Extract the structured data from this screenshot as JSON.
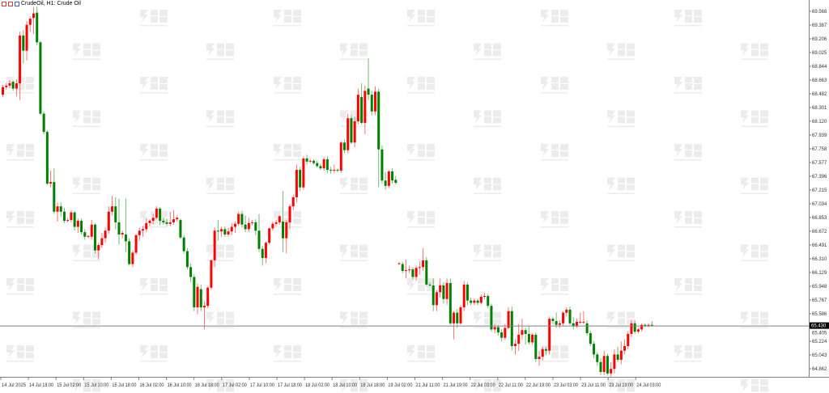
{
  "window": {
    "title": "CrudeOil, H1:  Crude Oil",
    "icons": [
      "chart-window-icon",
      "chart-window-icon",
      "chart-window-icon"
    ]
  },
  "watermark": "智昇",
  "colors": {
    "up": "#ff0000",
    "down": "#008000",
    "price_line": "#808080",
    "price_label_bg": "#000000",
    "grid_axis": "#808080"
  },
  "chart_data": {
    "type": "candlestick",
    "symbol": "CrudeOil",
    "timeframe": "H1",
    "current_price": "65.430",
    "ylim": [
      64.75,
      69.72
    ],
    "grid": false,
    "y_ticks": [
      "69.568",
      "69.387",
      "69.206",
      "69.025",
      "68.844",
      "68.663",
      "68.482",
      "68.301",
      "68.120",
      "67.939",
      "67.758",
      "67.577",
      "67.396",
      "67.215",
      "67.034",
      "66.853",
      "66.672",
      "66.491",
      "66.310",
      "66.129",
      "65.948",
      "65.767",
      "65.586",
      "65.405",
      "65.224",
      "65.043",
      "64.862"
    ],
    "x_ticks": [
      "14 Jul 2025",
      "14 Jul 18:00",
      "15 Jul 02:00",
      "15 Jul 10:00",
      "15 Jul 18:00",
      "16 Jul 02:00",
      "16 Jul 10:00",
      "16 Jul 18:00",
      "17 Jul 02:00",
      "17 Jul 10:00",
      "17 Jul 18:00",
      "18 Jul 02:00",
      "18 Jul 10:00",
      "18 Jul 18:00",
      "19 Jul 02:00",
      "21 Jul 11:00",
      "21 Jul 19:00",
      "22 Jul 03:00",
      "22 Jul 11:00",
      "22 Jul 19:00",
      "23 Jul 03:00",
      "23 Jul 11:00",
      "23 Jul 19:00",
      "24 Jul 03:00"
    ],
    "candles_ohlc": [
      [
        68.47,
        68.6,
        68.44,
        68.57
      ],
      [
        68.57,
        68.62,
        68.54,
        68.59
      ],
      [
        68.59,
        68.66,
        68.56,
        68.62
      ],
      [
        68.64,
        68.66,
        68.52,
        68.55
      ],
      [
        68.55,
        68.67,
        68.45,
        68.62
      ],
      [
        68.62,
        69.3,
        68.4,
        69.25
      ],
      [
        69.25,
        69.32,
        68.88,
        69.05
      ],
      [
        69.05,
        69.44,
        68.92,
        69.39
      ],
      [
        69.39,
        69.5,
        69.3,
        69.47
      ],
      [
        69.48,
        69.62,
        69.27,
        69.54
      ],
      [
        69.55,
        69.7,
        69.12,
        69.16
      ],
      [
        69.16,
        69.18,
        68.2,
        68.22
      ],
      [
        68.22,
        68.25,
        67.95,
        67.98
      ],
      [
        67.98,
        68.0,
        67.28,
        67.3
      ],
      [
        67.3,
        67.47,
        67.25,
        67.32
      ],
      [
        67.32,
        67.5,
        66.9,
        66.93
      ],
      [
        66.93,
        67.05,
        66.8,
        67.0
      ],
      [
        67.0,
        67.05,
        66.86,
        66.93
      ],
      [
        66.93,
        66.98,
        66.78,
        66.81
      ],
      [
        66.81,
        66.85,
        66.79,
        66.82
      ],
      [
        66.82,
        66.95,
        66.79,
        66.92
      ],
      [
        66.92,
        66.94,
        66.68,
        66.73
      ],
      [
        66.73,
        66.84,
        66.65,
        66.81
      ],
      [
        66.81,
        66.84,
        66.63,
        66.66
      ],
      [
        66.66,
        66.7,
        66.56,
        66.6
      ],
      [
        66.6,
        66.62,
        66.58,
        66.61
      ],
      [
        66.6,
        66.82,
        66.56,
        66.76
      ],
      [
        66.76,
        66.78,
        66.38,
        66.42
      ],
      [
        66.42,
        66.52,
        66.3,
        66.49
      ],
      [
        66.49,
        66.65,
        66.45,
        66.58
      ],
      [
        66.58,
        66.72,
        66.52,
        66.68
      ],
      [
        66.68,
        67.0,
        66.64,
        66.93
      ],
      [
        66.93,
        67.14,
        66.88,
        67.0
      ],
      [
        67.0,
        67.12,
        66.7,
        66.79
      ],
      [
        66.79,
        67.1,
        66.5,
        66.63
      ],
      [
        66.63,
        66.68,
        66.58,
        66.65
      ],
      [
        66.63,
        67.1,
        66.4,
        66.54
      ],
      [
        66.54,
        66.58,
        66.22,
        66.24
      ],
      [
        66.24,
        66.42,
        66.2,
        66.39
      ],
      [
        66.39,
        66.64,
        66.36,
        66.62
      ],
      [
        66.62,
        66.72,
        66.55,
        66.68
      ],
      [
        66.68,
        66.74,
        66.6,
        66.7
      ],
      [
        66.7,
        66.84,
        66.66,
        66.78
      ],
      [
        66.78,
        66.83,
        66.74,
        66.81
      ],
      [
        66.81,
        66.9,
        66.76,
        66.85
      ],
      [
        66.85,
        67.0,
        66.83,
        66.97
      ],
      [
        66.97,
        66.99,
        66.75,
        66.81
      ],
      [
        66.81,
        66.85,
        66.76,
        66.79
      ],
      [
        66.79,
        66.83,
        66.74,
        66.77
      ],
      [
        66.77,
        66.93,
        66.74,
        66.79
      ],
      [
        66.79,
        66.95,
        66.76,
        66.83
      ],
      [
        66.83,
        66.88,
        66.8,
        66.85
      ],
      [
        66.82,
        66.84,
        66.57,
        66.59
      ],
      [
        66.59,
        66.62,
        66.38,
        66.41
      ],
      [
        66.41,
        66.45,
        66.17,
        66.2
      ],
      [
        66.2,
        66.25,
        66.0,
        66.07
      ],
      [
        66.07,
        66.1,
        65.62,
        65.67
      ],
      [
        65.67,
        65.98,
        65.58,
        65.94
      ],
      [
        65.91,
        65.97,
        65.62,
        65.67
      ],
      [
        65.67,
        65.75,
        65.38,
        65.69
      ],
      [
        65.69,
        65.95,
        65.66,
        65.93
      ],
      [
        65.93,
        66.3,
        65.9,
        66.29
      ],
      [
        66.29,
        66.72,
        66.2,
        66.68
      ],
      [
        66.68,
        66.82,
        66.55,
        66.67
      ],
      [
        66.67,
        66.73,
        66.6,
        66.7
      ],
      [
        66.7,
        66.74,
        66.6,
        66.63
      ],
      [
        66.63,
        66.72,
        66.6,
        66.67
      ],
      [
        66.67,
        66.78,
        66.62,
        66.73
      ],
      [
        66.73,
        66.8,
        66.65,
        66.77
      ],
      [
        66.77,
        66.93,
        66.74,
        66.9
      ],
      [
        66.9,
        66.94,
        66.72,
        66.76
      ],
      [
        66.76,
        66.88,
        66.66,
        66.7
      ],
      [
        66.7,
        66.85,
        66.66,
        66.78
      ],
      [
        66.78,
        66.82,
        66.75,
        66.79
      ],
      [
        66.79,
        66.83,
        66.62,
        66.68
      ],
      [
        66.68,
        66.9,
        66.4,
        66.44
      ],
      [
        66.44,
        66.48,
        66.22,
        66.32
      ],
      [
        66.32,
        66.54,
        66.25,
        66.52
      ],
      [
        66.52,
        66.72,
        66.5,
        66.71
      ],
      [
        66.71,
        66.8,
        66.68,
        66.77
      ],
      [
        66.77,
        66.82,
        66.74,
        66.79
      ],
      [
        66.79,
        66.88,
        66.76,
        66.87
      ],
      [
        66.8,
        67.2,
        66.4,
        66.58
      ],
      [
        66.58,
        66.82,
        66.38,
        66.79
      ],
      [
        66.79,
        67.03,
        66.7,
        67.0
      ],
      [
        67.0,
        67.15,
        66.95,
        67.12
      ],
      [
        67.12,
        67.55,
        67.05,
        67.48
      ],
      [
        67.48,
        67.52,
        67.2,
        67.25
      ],
      [
        67.25,
        67.66,
        67.22,
        67.63
      ],
      [
        67.63,
        67.68,
        67.55,
        67.59
      ],
      [
        67.59,
        67.62,
        67.57,
        67.6
      ],
      [
        67.6,
        67.62,
        67.55,
        67.57
      ],
      [
        67.57,
        67.6,
        67.51,
        67.53
      ],
      [
        67.53,
        67.56,
        67.48,
        67.5
      ],
      [
        67.5,
        67.65,
        67.47,
        67.62
      ],
      [
        67.62,
        67.66,
        67.44,
        67.48
      ],
      [
        67.48,
        67.52,
        67.43,
        67.47
      ],
      [
        67.47,
        67.55,
        67.44,
        67.48
      ],
      [
        67.48,
        67.5,
        67.45,
        67.47
      ],
      [
        67.47,
        67.86,
        67.44,
        67.84
      ],
      [
        67.84,
        67.88,
        67.7,
        67.74
      ],
      [
        67.74,
        68.22,
        67.7,
        68.16
      ],
      [
        68.16,
        68.2,
        67.82,
        67.84
      ],
      [
        67.84,
        68.18,
        67.78,
        68.12
      ],
      [
        68.12,
        68.55,
        68.08,
        68.47
      ],
      [
        68.44,
        68.62,
        68.08,
        68.1
      ],
      [
        68.1,
        68.59,
        67.95,
        68.52
      ],
      [
        68.55,
        68.95,
        68.4,
        68.47
      ],
      [
        68.47,
        68.52,
        68.2,
        68.25
      ],
      [
        68.25,
        68.58,
        68.2,
        68.51
      ],
      [
        68.51,
        68.55,
        67.25,
        67.75
      ],
      [
        67.75,
        67.8,
        67.3,
        67.34
      ],
      [
        67.34,
        67.45,
        67.22,
        67.27
      ],
      [
        67.27,
        67.48,
        67.24,
        67.46
      ],
      [
        67.46,
        67.5,
        67.3,
        67.34
      ],
      [
        67.35,
        67.4,
        67.29,
        67.31
      ],
      [
        66.25,
        66.27,
        66.23,
        66.25
      ],
      [
        66.24,
        66.27,
        66.12,
        66.15
      ],
      [
        66.15,
        66.3,
        66.05,
        66.16
      ],
      [
        66.16,
        66.22,
        66.12,
        66.17
      ],
      [
        66.17,
        66.2,
        66.04,
        66.07
      ],
      [
        66.07,
        66.22,
        66.02,
        66.19
      ],
      [
        66.19,
        66.28,
        66.1,
        66.2
      ],
      [
        66.2,
        66.45,
        66.15,
        66.29
      ],
      [
        66.29,
        66.33,
        65.95,
        65.97
      ],
      [
        65.97,
        66.0,
        65.94,
        65.96
      ],
      [
        65.96,
        66.05,
        65.62,
        65.7
      ],
      [
        65.7,
        65.9,
        65.62,
        65.87
      ],
      [
        65.87,
        66.05,
        65.8,
        65.96
      ],
      [
        65.96,
        66.0,
        65.72,
        65.78
      ],
      [
        65.78,
        66.05,
        65.7,
        65.99
      ],
      [
        65.99,
        66.05,
        65.44,
        65.46
      ],
      [
        65.46,
        65.62,
        65.25,
        65.6
      ],
      [
        65.6,
        65.65,
        65.4,
        65.46
      ],
      [
        65.46,
        65.7,
        65.44,
        65.67
      ],
      [
        65.67,
        66.02,
        65.62,
        65.97
      ],
      [
        65.97,
        66.0,
        65.7,
        65.76
      ],
      [
        65.76,
        65.8,
        65.7,
        65.73
      ],
      [
        65.73,
        65.79,
        65.7,
        65.76
      ],
      [
        65.76,
        65.78,
        65.7,
        65.73
      ],
      [
        65.73,
        65.84,
        65.71,
        65.81
      ],
      [
        65.81,
        65.86,
        65.78,
        65.82
      ],
      [
        65.82,
        65.85,
        65.66,
        65.69
      ],
      [
        65.69,
        65.72,
        65.35,
        65.38
      ],
      [
        65.38,
        65.45,
        65.33,
        65.41
      ],
      [
        65.41,
        65.44,
        65.3,
        65.34
      ],
      [
        65.34,
        65.38,
        65.22,
        65.27
      ],
      [
        65.27,
        65.45,
        65.24,
        65.4
      ],
      [
        65.4,
        65.67,
        65.38,
        65.62
      ],
      [
        65.62,
        65.68,
        65.1,
        65.16
      ],
      [
        65.16,
        65.25,
        65.05,
        65.19
      ],
      [
        65.19,
        65.45,
        65.1,
        65.31
      ],
      [
        65.31,
        65.52,
        65.25,
        65.37
      ],
      [
        65.37,
        65.4,
        65.18,
        65.32
      ],
      [
        65.32,
        65.42,
        65.18,
        65.21
      ],
      [
        65.21,
        65.33,
        65.18,
        65.31
      ],
      [
        65.31,
        65.34,
        64.95,
        64.99
      ],
      [
        64.99,
        65.1,
        64.9,
        65.02
      ],
      [
        65.02,
        65.15,
        64.97,
        65.12
      ],
      [
        65.12,
        65.15,
        65.04,
        65.1
      ],
      [
        65.1,
        65.55,
        65.05,
        65.52
      ],
      [
        65.52,
        65.55,
        65.45,
        65.49
      ],
      [
        65.49,
        65.6,
        65.4,
        65.44
      ],
      [
        65.44,
        65.5,
        65.4,
        65.46
      ],
      [
        65.46,
        65.62,
        65.43,
        65.6
      ],
      [
        65.6,
        65.67,
        65.55,
        65.64
      ],
      [
        65.64,
        65.68,
        65.44,
        65.46
      ],
      [
        65.46,
        65.54,
        65.38,
        65.42
      ],
      [
        65.42,
        65.52,
        65.4,
        65.48
      ],
      [
        65.48,
        65.6,
        65.45,
        65.48
      ],
      [
        65.48,
        65.62,
        65.45,
        65.48
      ],
      [
        65.46,
        65.5,
        65.3,
        65.33
      ],
      [
        65.33,
        65.36,
        65.16,
        65.19
      ],
      [
        65.19,
        65.22,
        65.0,
        65.05
      ],
      [
        65.05,
        65.08,
        64.9,
        64.95
      ],
      [
        64.95,
        65.0,
        64.78,
        64.82
      ],
      [
        64.82,
        65.1,
        64.78,
        65.03
      ],
      [
        65.03,
        65.06,
        64.77,
        64.8
      ],
      [
        64.8,
        64.95,
        64.76,
        64.86
      ],
      [
        64.86,
        65.12,
        64.8,
        65.05
      ],
      [
        65.05,
        65.15,
        64.95,
        64.98
      ],
      [
        64.98,
        65.22,
        64.92,
        65.1
      ],
      [
        65.1,
        65.25,
        65.05,
        65.16
      ],
      [
        65.16,
        65.36,
        65.12,
        65.32
      ],
      [
        65.32,
        65.5,
        65.28,
        65.46
      ],
      [
        65.46,
        65.5,
        65.32,
        65.35
      ],
      [
        65.35,
        65.4,
        65.33,
        65.38
      ],
      [
        65.38,
        65.46,
        65.35,
        65.44
      ],
      [
        65.44,
        65.46,
        65.41,
        65.43
      ],
      [
        65.43,
        65.46,
        65.41,
        65.44
      ],
      [
        65.44,
        65.49,
        65.42,
        65.43
      ]
    ]
  }
}
